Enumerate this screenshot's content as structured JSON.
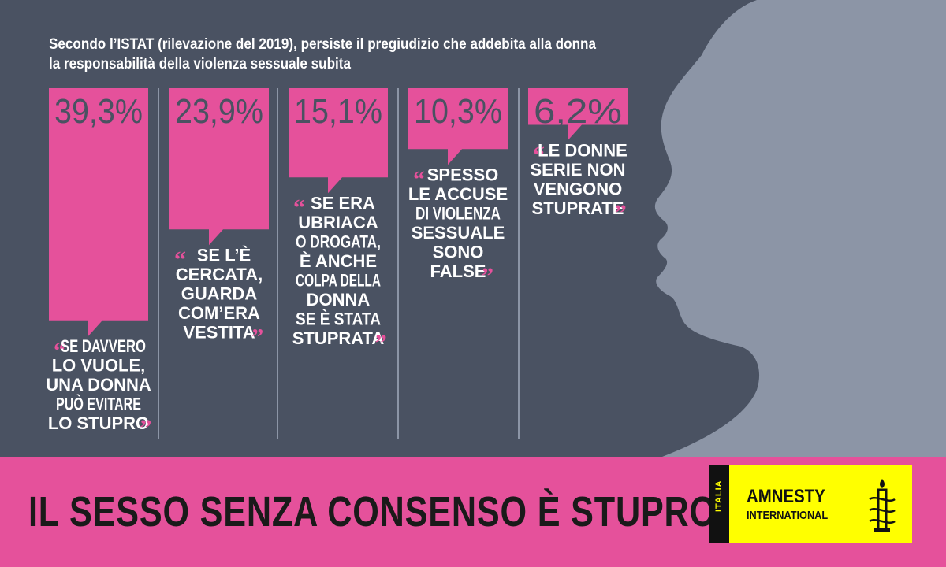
{
  "intro": {
    "line1": "Secondo l’ISTAT (rilevazione del 2019), persiste il pregiudizio che addebita alla donna",
    "line2": "la responsabilità della violenza sessuale subita"
  },
  "chart_data": {
    "type": "bar",
    "orientation": "vertical",
    "value_unit": "%",
    "categories": [
      "SE DAVVERO LO VUOLE, UNA DONNA PUÒ EVITARE LO STUPRO",
      "SE L’È CERCATA, GUARDA COM’ERA VESTITA",
      "SE ERA UBRIACA O DROGATA, È ANCHE COLPA DELLA DONNA SE È STATA STUPRATA",
      "SPESSO LE ACCUSE DI VIOLENZA SESSUALE SONO FALSE",
      "LE DONNE SERIE NON VENGONO STUPRATE"
    ],
    "values": [
      39.3,
      23.9,
      15.1,
      10.3,
      6.2
    ],
    "value_labels": [
      "39,3%",
      "23,9%",
      "15,1%",
      "10,3%",
      "6,2%"
    ],
    "quote_lines": [
      [
        "SE DAVVERO",
        "LO VUOLE,",
        "UNA DONNA",
        "PUÒ EVITARE",
        "LO STUPRO"
      ],
      [
        "SE L’È",
        "CERCATA,",
        "GUARDA",
        "COM’ERA",
        "VESTITA"
      ],
      [
        "SE ERA",
        "UBRIACA",
        "O DROGATA,",
        "È ANCHE",
        "COLPA DELLA",
        "DONNA",
        "SE È STATA",
        "STUPRATA"
      ],
      [
        "SPESSO",
        "LE ACCUSE",
        "DI VIOLENZA",
        "SESSUALE",
        "SONO",
        "FALSE"
      ],
      [
        "LE DONNE",
        "SERIE NON",
        "VENGONO",
        "STUPRATE"
      ]
    ],
    "bar_color": "#e5519b",
    "background_color": "#4a5262",
    "grid": false
  },
  "footer": {
    "slogan": "IL SESSO SENZA CONSENSO È STUPRO!",
    "background_color": "#e5519b"
  },
  "logo": {
    "country": "ITALIA",
    "name": "AMNESTY",
    "subname": "INTERNATIONAL",
    "icon": "candle-barbed-wire-icon",
    "background_color": "#ffff00"
  },
  "silhouette": {
    "icon": "woman-profile-silhouette",
    "color": "#8c95a6"
  }
}
